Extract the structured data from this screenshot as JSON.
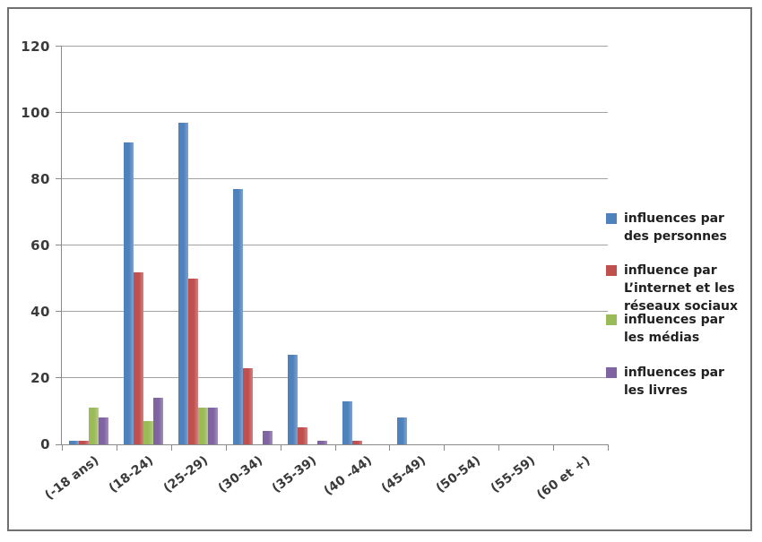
{
  "chart_data": {
    "type": "bar",
    "title": "",
    "xlabel": "",
    "ylabel": "",
    "categories": [
      "(-18 ans)",
      "(18-24)",
      "(25-29)",
      "(30-34)",
      "(35-39)",
      "(40 -44)",
      "(45-49)",
      "(50-54)",
      "(55-59)",
      "(60 et +)"
    ],
    "series": [
      {
        "name": "influences par des personnes",
        "color": "#4F81BD",
        "values": [
          1,
          91,
          97,
          77,
          27,
          13,
          8,
          0,
          0,
          0
        ]
      },
      {
        "name": "influence par L’internet et les réseaux sociaux",
        "color": "#C0504D",
        "values": [
          1,
          52,
          50,
          23,
          5,
          1,
          0,
          0,
          0,
          0
        ]
      },
      {
        "name": "influences par les médias",
        "color": "#9BBB59",
        "values": [
          11,
          7,
          11,
          0,
          0,
          0,
          0,
          0,
          0,
          0
        ]
      },
      {
        "name": "influences par les livres",
        "color": "#8064A2",
        "values": [
          8,
          14,
          11,
          4,
          1,
          0,
          0,
          0,
          0,
          0
        ]
      }
    ],
    "ylim": [
      0,
      120
    ],
    "yticks": [
      0,
      20,
      40,
      60,
      80,
      100,
      120
    ],
    "grid": true,
    "legend_position": "right"
  },
  "legend": {
    "items": [
      {
        "label": "influences par des personnes",
        "lines": [
          "influences par",
          "des personnes"
        ]
      },
      {
        "label": "influence par L’internet et les réseaux sociaux",
        "lines": [
          "influence par",
          "L’internet et les",
          "réseaux sociaux"
        ]
      },
      {
        "label": "influences par les médias",
        "lines": [
          "influences par",
          "les médias"
        ]
      },
      {
        "label": "influences par les livres",
        "lines": [
          "influences par",
          "les livres"
        ]
      }
    ]
  },
  "colors": {
    "series_blue": "#4F81BD",
    "series_red": "#C0504D",
    "series_green": "#9BBB59",
    "series_purple": "#8064A2",
    "gridline": "#A3A3A3",
    "axis": "#8A8A8A",
    "label_text": "#3A3A3A",
    "legend_text": "#1F1F1F",
    "frame_border": "#707070",
    "background": "#FFFFFF"
  }
}
